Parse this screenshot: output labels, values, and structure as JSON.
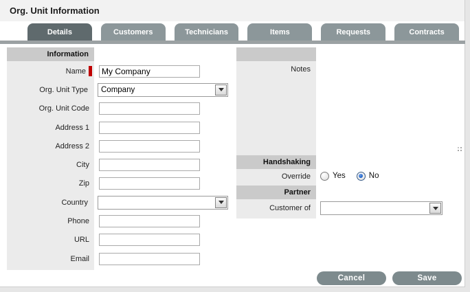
{
  "window": {
    "title": "Org. Unit Information"
  },
  "tabs": [
    {
      "label": "Details",
      "active": true
    },
    {
      "label": "Customers",
      "active": false
    },
    {
      "label": "Technicians",
      "active": false
    },
    {
      "label": "Items",
      "active": false
    },
    {
      "label": "Requests",
      "active": false
    },
    {
      "label": "Contracts",
      "active": false
    }
  ],
  "left_form": {
    "header": "Information",
    "fields": [
      {
        "label": "Name",
        "type": "text",
        "value": "My Company",
        "required": true
      },
      {
        "label": "Org. Unit Type",
        "type": "select",
        "value": "Company"
      },
      {
        "label": "Org. Unit Code",
        "type": "text",
        "value": ""
      },
      {
        "label": "Address 1",
        "type": "text",
        "value": ""
      },
      {
        "label": "Address 2",
        "type": "text",
        "value": ""
      },
      {
        "label": "City",
        "type": "text",
        "value": ""
      },
      {
        "label": "Zip",
        "type": "text",
        "value": ""
      },
      {
        "label": "Country",
        "type": "select",
        "value": ""
      },
      {
        "label": "Phone",
        "type": "text",
        "value": ""
      },
      {
        "label": "URL",
        "type": "text",
        "value": ""
      },
      {
        "label": "Email",
        "type": "text",
        "value": ""
      }
    ]
  },
  "notes": {
    "label": "Notes",
    "value": ""
  },
  "handshaking": {
    "header": "Handshaking",
    "override_label": "Override",
    "options": [
      {
        "label": "Yes",
        "selected": false
      },
      {
        "label": "No",
        "selected": true
      }
    ]
  },
  "partner": {
    "header": "Partner",
    "customer_of_label": "Customer of",
    "customer_of_value": ""
  },
  "footer": {
    "cancel_label": "Cancel",
    "save_label": "Save"
  },
  "colors": {
    "tab_active": "#5f6a6d",
    "tab_inactive": "#8c979a",
    "divider": "#9ba1a3",
    "section_bar": "#cacaca",
    "label_strip": "#ebebeb",
    "button": "#7d8a8d",
    "radio_selected": "#1e62c8",
    "required_marker": "#c00000"
  }
}
